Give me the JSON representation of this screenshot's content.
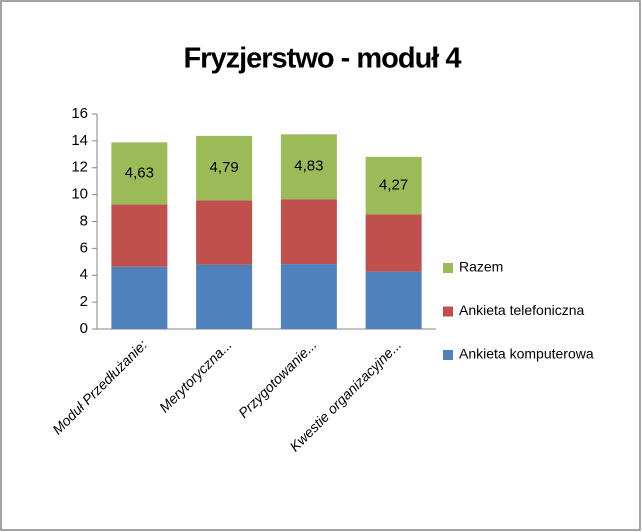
{
  "chart_data": {
    "type": "stacked_bar",
    "title": "Fryzjerstwo - moduł 4",
    "categories": [
      "Moduł Przedłużanie:",
      "Merytoryczna...",
      "Przygotowanie...",
      "Kwestie organizacyjne..."
    ],
    "series": [
      {
        "name": "Ankieta komputerowa",
        "color": "#4f81bd",
        "values": [
          4.63,
          4.79,
          4.83,
          4.27
        ]
      },
      {
        "name": "Ankieta telefoniczna",
        "color": "#c0504d",
        "values": [
          4.63,
          4.79,
          4.83,
          4.27
        ]
      },
      {
        "name": "Razem",
        "color": "#9bbb59",
        "values": [
          4.63,
          4.79,
          4.83,
          4.27
        ],
        "value_labels": [
          "4,63",
          "4,79",
          "4,83",
          "4,27"
        ]
      }
    ],
    "ylim": [
      0,
      16
    ],
    "yticks": [
      0,
      2,
      4,
      6,
      8,
      10,
      12,
      14,
      16
    ],
    "grid": false,
    "legend": "right"
  }
}
